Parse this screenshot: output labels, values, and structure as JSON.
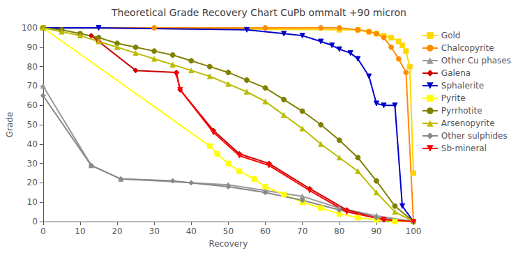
{
  "chart_data": {
    "type": "line",
    "title": "Theoretical Grade Recovery Chart CuPb ommalt +90 micron",
    "xlabel": "Recovery",
    "ylabel": "Grade",
    "xlim": [
      0,
      100
    ],
    "ylim": [
      0,
      100
    ],
    "xticks": [
      0,
      10,
      20,
      30,
      40,
      50,
      60,
      70,
      80,
      90,
      100
    ],
    "yticks": [
      0,
      10,
      20,
      30,
      40,
      50,
      60,
      70,
      80,
      90,
      100
    ],
    "grid": false,
    "legend": "right",
    "series": [
      {
        "name": "Gold",
        "color": "#FFD700",
        "marker": "square",
        "x": [
          0,
          80,
          85,
          88,
          90,
          92,
          94,
          96,
          97,
          98,
          99,
          100
        ],
        "values": [
          100,
          99,
          99,
          98,
          97,
          96,
          95,
          93,
          91,
          88,
          80,
          25
        ]
      },
      {
        "name": "Chalcopyrite",
        "color": "#FF8C00",
        "marker": "circle",
        "x": [
          0,
          30,
          60,
          75,
          80,
          85,
          88,
          90,
          92,
          94,
          96,
          98,
          100
        ],
        "values": [
          100,
          100,
          100,
          100,
          100,
          99,
          98,
          97,
          95,
          90,
          84,
          77,
          0
        ]
      },
      {
        "name": "Other Cu phases",
        "color": "#999999",
        "marker": "triangle_up",
        "x": [
          0,
          13,
          21,
          50,
          60,
          70,
          80,
          90,
          100
        ],
        "values": [
          70,
          29,
          22,
          19,
          16,
          13,
          7,
          3,
          0
        ]
      },
      {
        "name": "Galena",
        "color": "#CC0000",
        "marker": "diamond",
        "x": [
          13,
          15,
          25,
          36,
          37,
          46,
          53,
          61,
          72,
          82,
          92,
          100
        ],
        "values": [
          96,
          93,
          78,
          77,
          68,
          47,
          35,
          30,
          17,
          6,
          1,
          0
        ]
      },
      {
        "name": "Sphalerite",
        "color": "#0000CC",
        "marker": "triangle_down",
        "x": [
          0,
          15,
          55,
          65,
          70,
          75,
          78,
          80,
          83,
          85,
          88,
          90,
          92,
          95,
          97,
          100
        ],
        "values": [
          100,
          100,
          99,
          97,
          96,
          93,
          91,
          89,
          87,
          84,
          75,
          61,
          60,
          60,
          8,
          0
        ]
      },
      {
        "name": "Pyrite",
        "color": "#FFFF00",
        "marker": "square",
        "x": [
          0,
          45,
          47,
          50,
          53,
          57,
          60,
          65,
          70,
          75,
          80,
          85,
          90,
          95,
          100
        ],
        "values": [
          100,
          39,
          35,
          30,
          26,
          22,
          18,
          14,
          10,
          7,
          4,
          2,
          1,
          0,
          0
        ]
      },
      {
        "name": "Pyrrhotite",
        "color": "#808000",
        "marker": "circle",
        "x": [
          0,
          5,
          10,
          15,
          20,
          25,
          30,
          35,
          40,
          45,
          50,
          55,
          60,
          65,
          70,
          75,
          80,
          85,
          90,
          95,
          100
        ],
        "values": [
          100,
          99,
          97,
          95,
          92,
          90,
          88,
          86,
          83,
          80,
          77,
          73,
          69,
          63,
          57,
          50,
          42,
          33,
          21,
          8,
          0
        ]
      },
      {
        "name": "Arsenopyrite",
        "color": "#BCBC00",
        "marker": "triangle_up",
        "x": [
          0,
          5,
          10,
          15,
          20,
          25,
          30,
          35,
          40,
          45,
          50,
          55,
          60,
          65,
          70,
          75,
          80,
          85,
          90,
          95,
          100
        ],
        "values": [
          100,
          98,
          96,
          93,
          90,
          87,
          84,
          81,
          78,
          75,
          71,
          67,
          62,
          55,
          48,
          40,
          33,
          26,
          15,
          5,
          0
        ]
      },
      {
        "name": "Other sulphides",
        "color": "#888888",
        "marker": "diamond",
        "x": [
          0,
          13,
          21,
          35,
          40,
          50,
          60,
          70,
          80,
          90,
          100
        ],
        "values": [
          65,
          29,
          22,
          21,
          20,
          18,
          15,
          11,
          6,
          2,
          0
        ]
      },
      {
        "name": "Sb-mineral",
        "color": "#FF0000",
        "marker": "triangle_down",
        "x": [
          36,
          37,
          46,
          53,
          61,
          72,
          82,
          92,
          100
        ],
        "values": [
          76,
          68,
          46,
          34,
          29,
          16,
          5,
          1,
          0
        ]
      }
    ]
  }
}
